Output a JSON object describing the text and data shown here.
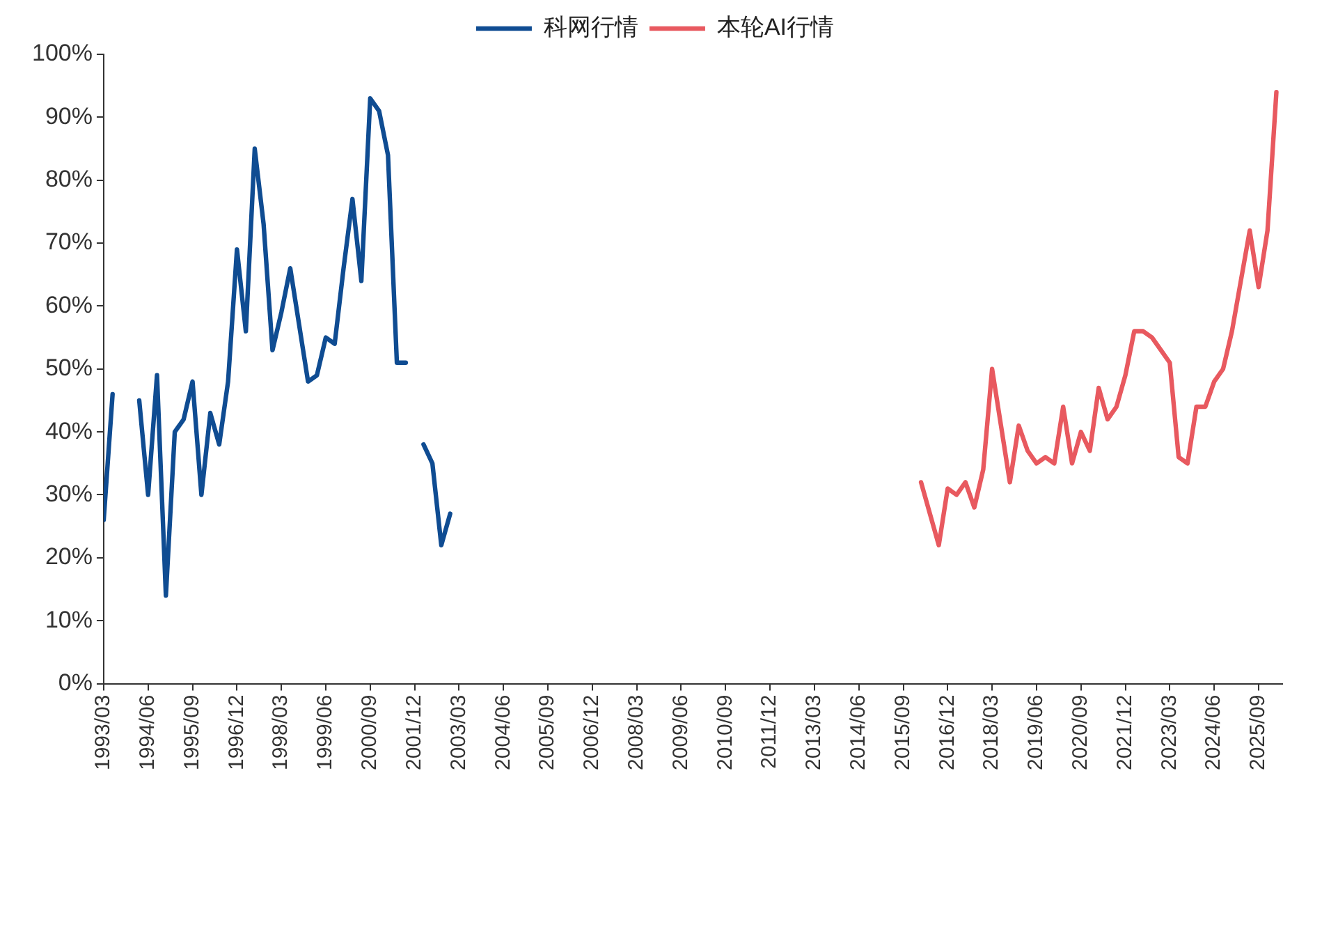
{
  "chart_data": {
    "type": "line",
    "legend": "top",
    "grid": false,
    "marker": "none",
    "line_style": "solid",
    "ylim": [
      0,
      100
    ],
    "yticks": [
      {
        "value": 0,
        "label": "0%"
      },
      {
        "value": 10,
        "label": "10%"
      },
      {
        "value": 20,
        "label": "20%"
      },
      {
        "value": 30,
        "label": "30%"
      },
      {
        "value": 40,
        "label": "40%"
      },
      {
        "value": 50,
        "label": "50%"
      },
      {
        "value": 60,
        "label": "60%"
      },
      {
        "value": 70,
        "label": "70%"
      },
      {
        "value": 80,
        "label": "80%"
      },
      {
        "value": 90,
        "label": "90%"
      },
      {
        "value": 100,
        "label": "100%"
      }
    ],
    "xlim": [
      "1993-03",
      "2026-05"
    ],
    "xticks": [
      {
        "value": "1993-03",
        "label": "1993/03"
      },
      {
        "value": "1994-06",
        "label": "1994/06"
      },
      {
        "value": "1995-09",
        "label": "1995/09"
      },
      {
        "value": "1996-12",
        "label": "1996/12"
      },
      {
        "value": "1998-03",
        "label": "1998/03"
      },
      {
        "value": "1999-06",
        "label": "1999/06"
      },
      {
        "value": "2000-09",
        "label": "2000/09"
      },
      {
        "value": "2001-12",
        "label": "2001/12"
      },
      {
        "value": "2003-03",
        "label": "2003/03"
      },
      {
        "value": "2004-06",
        "label": "2004/06"
      },
      {
        "value": "2005-09",
        "label": "2005/09"
      },
      {
        "value": "2006-12",
        "label": "2006/12"
      },
      {
        "value": "2008-03",
        "label": "2008/03"
      },
      {
        "value": "2009-06",
        "label": "2009/06"
      },
      {
        "value": "2010-09",
        "label": "2010/09"
      },
      {
        "value": "2011-12",
        "label": "2011/12"
      },
      {
        "value": "2013-03",
        "label": "2013/03"
      },
      {
        "value": "2014-06",
        "label": "2014/06"
      },
      {
        "value": "2015-09",
        "label": "2015/09"
      },
      {
        "value": "2016-12",
        "label": "2016/12"
      },
      {
        "value": "2018-03",
        "label": "2018/03"
      },
      {
        "value": "2019-06",
        "label": "2019/06"
      },
      {
        "value": "2020-09",
        "label": "2020/09"
      },
      {
        "value": "2021-12",
        "label": "2021/12"
      },
      {
        "value": "2023-03",
        "label": "2023/03"
      },
      {
        "value": "2024-06",
        "label": "2024/06"
      },
      {
        "value": "2025-09",
        "label": "2025/09"
      }
    ],
    "series": [
      {
        "name": "科网行情",
        "color": "#0f4c92",
        "x": [
          "1993-03",
          "1993-06",
          "1993-09",
          "1993-12",
          "1994-03",
          "1994-06",
          "1994-09",
          "1994-12",
          "1995-03",
          "1995-06",
          "1995-09",
          "1995-12",
          "1996-03",
          "1996-06",
          "1996-09",
          "1996-12",
          "1997-03",
          "1997-06",
          "1997-09",
          "1997-12",
          "1998-03",
          "1998-06",
          "1998-09",
          "1998-12",
          "1999-03",
          "1999-06",
          "1999-09",
          "1999-12",
          "2000-03",
          "2000-06",
          "2000-09",
          "2000-12",
          "2001-03",
          "2001-06",
          "2001-09",
          "2001-12",
          "2002-03",
          "2002-06",
          "2002-09",
          "2002-12"
        ],
        "values": [
          26,
          46,
          null,
          null,
          45,
          30,
          49,
          14,
          40,
          42,
          48,
          30,
          43,
          38,
          48,
          69,
          56,
          85,
          73,
          53,
          59,
          66,
          57,
          48,
          49,
          55,
          54,
          66,
          77,
          64,
          93,
          91,
          84,
          51,
          51,
          null,
          38,
          35,
          22,
          27
        ]
      },
      {
        "name": "本轮AI行情",
        "color": "#e8595f",
        "x": [
          "2016-03",
          "2016-06",
          "2016-09",
          "2016-12",
          "2017-03",
          "2017-06",
          "2017-09",
          "2017-12",
          "2018-03",
          "2018-06",
          "2018-09",
          "2018-12",
          "2019-03",
          "2019-06",
          "2019-09",
          "2019-12",
          "2020-03",
          "2020-06",
          "2020-09",
          "2020-12",
          "2021-03",
          "2021-06",
          "2021-09",
          "2021-12",
          "2022-03",
          "2022-06",
          "2022-09",
          "2022-12",
          "2023-03",
          "2023-06",
          "2023-09",
          "2023-12",
          "2024-03",
          "2024-06",
          "2024-09",
          "2024-12",
          "2025-03",
          "2025-06",
          "2025-09",
          "2025-12",
          "2026-03"
        ],
        "values": [
          32,
          27,
          22,
          31,
          30,
          32,
          28,
          34,
          50,
          41,
          32,
          41,
          37,
          35,
          36,
          35,
          44,
          35,
          40,
          37,
          47,
          42,
          44,
          49,
          56,
          56,
          55,
          53,
          51,
          36,
          35,
          44,
          44,
          48,
          50,
          56,
          64,
          72,
          63,
          72,
          94
        ]
      }
    ]
  }
}
